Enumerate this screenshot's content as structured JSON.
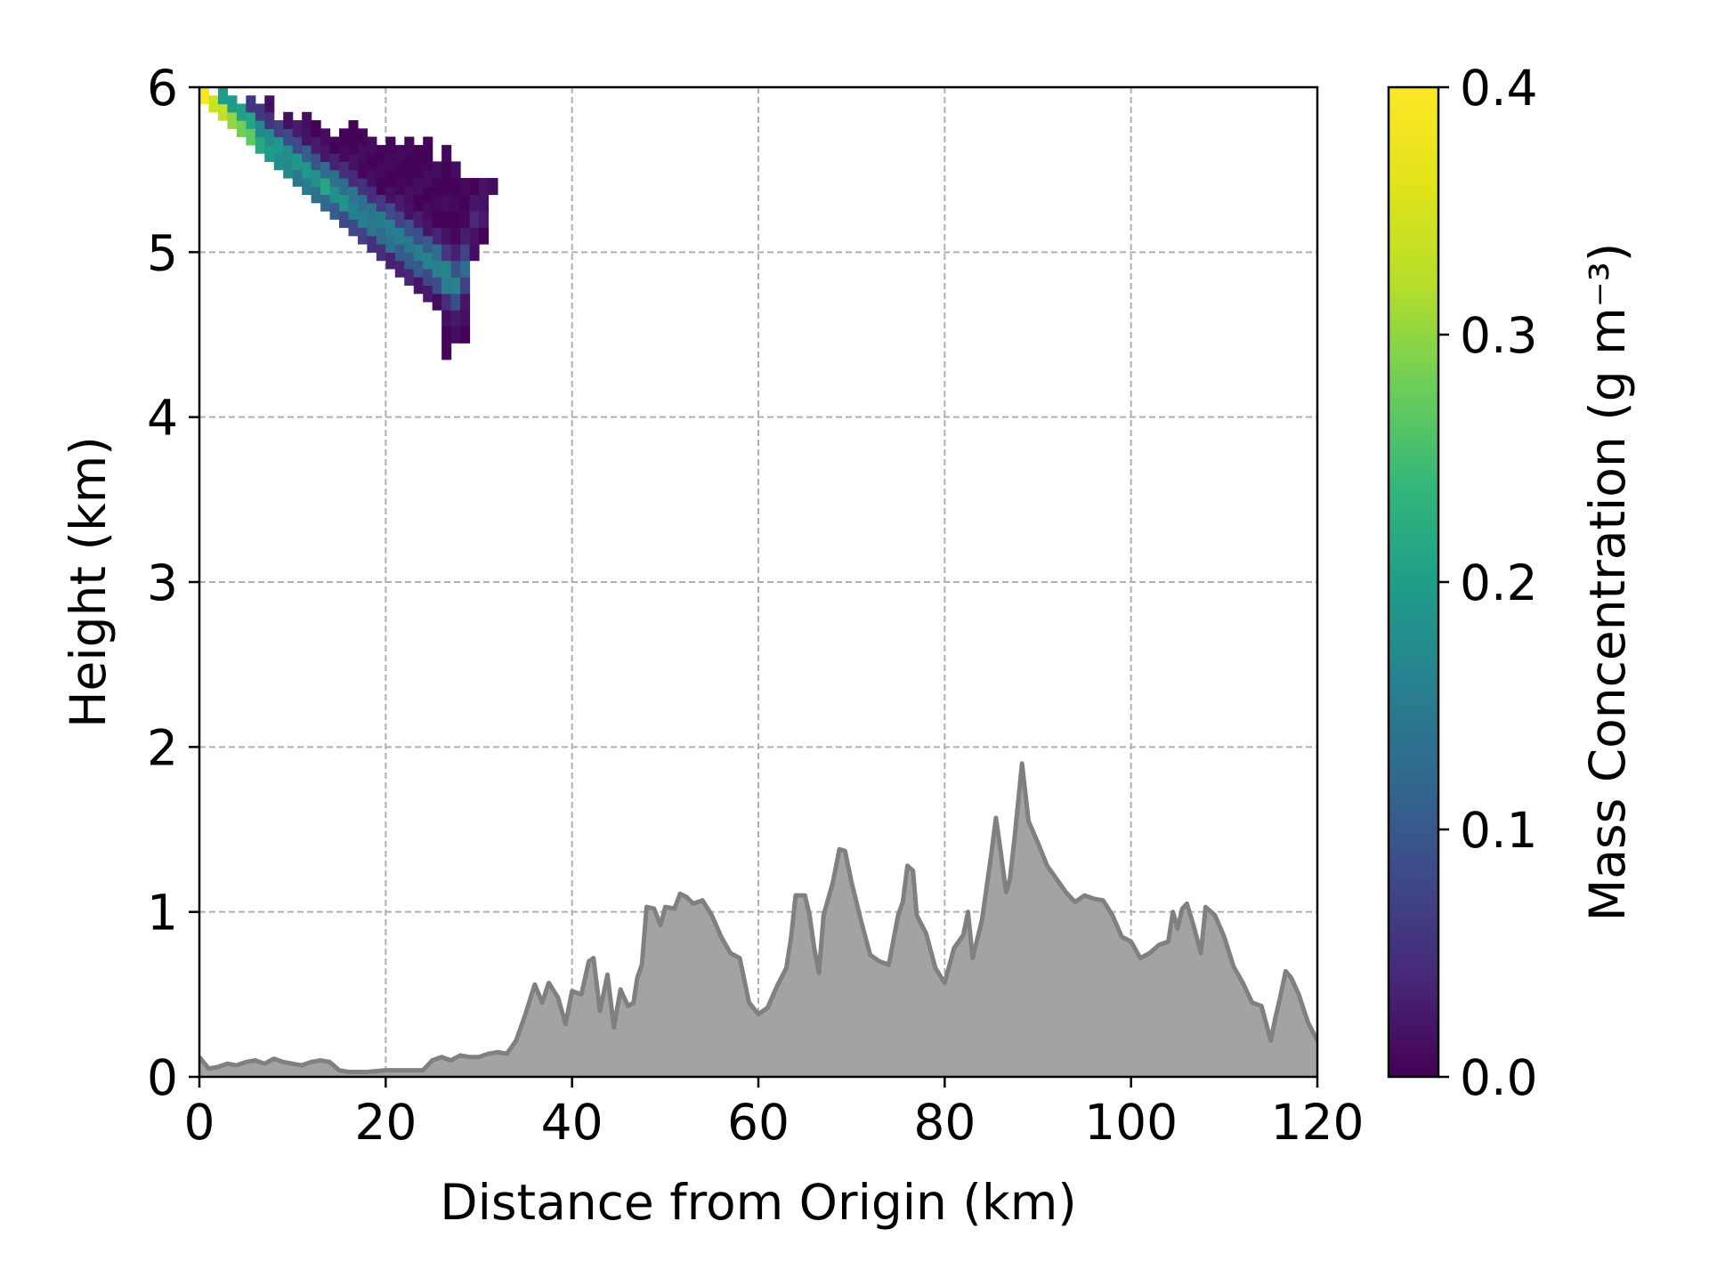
{
  "chart_data": {
    "type": "heatmap",
    "title": "",
    "xlabel": "Distance from Origin (km)",
    "ylabel": "Height (km)",
    "xlim": [
      0,
      120
    ],
    "ylim": [
      0,
      6
    ],
    "x_ticks": [
      "0",
      "20",
      "40",
      "60",
      "80",
      "100",
      "120"
    ],
    "y_ticks": [
      "0",
      "1",
      "2",
      "3",
      "4",
      "5",
      "6"
    ],
    "grid": true,
    "colorbar": {
      "label": "Mass Concentration (g m⁻³)",
      "colormap": "viridis",
      "range": [
        0.0,
        0.4
      ],
      "ticks": [
        "0.0",
        "0.1",
        "0.2",
        "0.3",
        "0.4"
      ]
    },
    "plume": {
      "description_units": "x in km, height in km, concentration in g m-3",
      "cell_size_km": [
        1.0,
        0.1
      ],
      "columns": [
        {
          "x": 0.5,
          "bottom": 5.9,
          "top": 6.0,
          "peak": 0.4,
          "peak_h": 5.95
        },
        {
          "x": 1.5,
          "bottom": 5.85,
          "top": 5.95,
          "peak": 0.34,
          "peak_h": 5.9
        },
        {
          "x": 2.5,
          "bottom": 5.8,
          "top": 5.95,
          "peak": 0.32,
          "peak_h": 5.85
        },
        {
          "x": 3.5,
          "bottom": 5.75,
          "top": 5.92,
          "peak": 0.3,
          "peak_h": 5.8
        },
        {
          "x": 4.5,
          "bottom": 5.7,
          "top": 5.92,
          "peak": 0.28,
          "peak_h": 5.77
        },
        {
          "x": 5.5,
          "bottom": 5.65,
          "top": 5.9,
          "peak": 0.28,
          "peak_h": 5.72
        },
        {
          "x": 6.5,
          "bottom": 5.6,
          "top": 5.9,
          "peak": 0.22,
          "peak_h": 5.68
        },
        {
          "x": 7.5,
          "bottom": 5.55,
          "top": 5.9,
          "peak": 0.2,
          "peak_h": 5.64
        },
        {
          "x": 8.5,
          "bottom": 5.5,
          "top": 5.85,
          "peak": 0.2,
          "peak_h": 5.6
        },
        {
          "x": 9.5,
          "bottom": 5.45,
          "top": 5.85,
          "peak": 0.19,
          "peak_h": 5.56
        },
        {
          "x": 10.5,
          "bottom": 5.4,
          "top": 5.8,
          "peak": 0.19,
          "peak_h": 5.52
        },
        {
          "x": 11.5,
          "bottom": 5.35,
          "top": 5.8,
          "peak": 0.2,
          "peak_h": 5.48
        },
        {
          "x": 12.5,
          "bottom": 5.3,
          "top": 5.8,
          "peak": 0.18,
          "peak_h": 5.44
        },
        {
          "x": 13.5,
          "bottom": 5.25,
          "top": 5.78,
          "peak": 0.2,
          "peak_h": 5.4
        },
        {
          "x": 14.5,
          "bottom": 5.2,
          "top": 5.75,
          "peak": 0.18,
          "peak_h": 5.36
        },
        {
          "x": 15.5,
          "bottom": 5.15,
          "top": 5.75,
          "peak": 0.18,
          "peak_h": 5.32
        },
        {
          "x": 16.5,
          "bottom": 5.1,
          "top": 5.75,
          "peak": 0.17,
          "peak_h": 5.28
        },
        {
          "x": 17.5,
          "bottom": 5.05,
          "top": 5.75,
          "peak": 0.16,
          "peak_h": 5.24
        },
        {
          "x": 18.5,
          "bottom": 5.0,
          "top": 5.72,
          "peak": 0.15,
          "peak_h": 5.2
        },
        {
          "x": 19.5,
          "bottom": 4.95,
          "top": 5.65,
          "peak": 0.15,
          "peak_h": 5.16
        },
        {
          "x": 20.5,
          "bottom": 4.9,
          "top": 5.65,
          "peak": 0.16,
          "peak_h": 5.12
        },
        {
          "x": 21.5,
          "bottom": 4.85,
          "top": 5.65,
          "peak": 0.15,
          "peak_h": 5.08
        },
        {
          "x": 22.5,
          "bottom": 4.8,
          "top": 5.65,
          "peak": 0.15,
          "peak_h": 5.04
        },
        {
          "x": 23.5,
          "bottom": 4.75,
          "top": 5.65,
          "peak": 0.15,
          "peak_h": 5.0
        },
        {
          "x": 24.5,
          "bottom": 4.7,
          "top": 5.65,
          "peak": 0.15,
          "peak_h": 4.96
        },
        {
          "x": 25.5,
          "bottom": 4.65,
          "top": 5.55,
          "peak": 0.16,
          "peak_h": 4.92
        },
        {
          "x": 26.5,
          "bottom": 4.35,
          "top": 5.6,
          "peak": 0.17,
          "peak_h": 4.86
        },
        {
          "x": 27.5,
          "bottom": 4.45,
          "top": 5.55,
          "peak": 0.15,
          "peak_h": 4.8
        },
        {
          "x": 28.5,
          "bottom": 4.45,
          "top": 5.5,
          "peak": 0.12,
          "peak_h": 4.9
        },
        {
          "x": 29.5,
          "bottom": 4.95,
          "top": 5.5,
          "peak": 0.03,
          "peak_h": 5.2
        },
        {
          "x": 30.5,
          "bottom": 5.05,
          "top": 5.45,
          "peak": 0.02,
          "peak_h": 5.25
        },
        {
          "x": 31.5,
          "bottom": 5.35,
          "top": 5.45,
          "peak": 0.01,
          "peak_h": 5.4
        }
      ]
    },
    "terrain": {
      "color": "#a3a3a3",
      "line_color": "#808080",
      "points": [
        [
          0,
          0.12
        ],
        [
          1,
          0.05
        ],
        [
          2,
          0.06
        ],
        [
          3,
          0.08
        ],
        [
          4,
          0.07
        ],
        [
          5,
          0.09
        ],
        [
          6,
          0.1
        ],
        [
          7,
          0.08
        ],
        [
          8,
          0.11
        ],
        [
          9,
          0.09
        ],
        [
          10,
          0.08
        ],
        [
          11,
          0.07
        ],
        [
          12,
          0.09
        ],
        [
          13,
          0.1
        ],
        [
          14,
          0.09
        ],
        [
          15,
          0.04
        ],
        [
          16,
          0.03
        ],
        [
          18,
          0.03
        ],
        [
          20,
          0.04
        ],
        [
          22,
          0.04
        ],
        [
          24,
          0.04
        ],
        [
          25,
          0.1
        ],
        [
          26,
          0.12
        ],
        [
          27,
          0.1
        ],
        [
          28,
          0.13
        ],
        [
          29,
          0.12
        ],
        [
          30,
          0.12
        ],
        [
          31,
          0.14
        ],
        [
          32,
          0.15
        ],
        [
          33,
          0.14
        ],
        [
          34,
          0.22
        ],
        [
          35,
          0.38
        ],
        [
          36,
          0.56
        ],
        [
          36.8,
          0.45
        ],
        [
          37.5,
          0.57
        ],
        [
          38.5,
          0.48
        ],
        [
          39.3,
          0.32
        ],
        [
          40,
          0.52
        ],
        [
          41,
          0.5
        ],
        [
          41.8,
          0.7
        ],
        [
          42.3,
          0.72
        ],
        [
          43,
          0.4
        ],
        [
          43.8,
          0.62
        ],
        [
          44.5,
          0.3
        ],
        [
          45.2,
          0.53
        ],
        [
          46,
          0.43
        ],
        [
          46.6,
          0.45
        ],
        [
          47,
          0.6
        ],
        [
          47.5,
          0.68
        ],
        [
          48,
          1.03
        ],
        [
          48.8,
          1.02
        ],
        [
          49.5,
          0.92
        ],
        [
          50,
          1.03
        ],
        [
          51,
          1.02
        ],
        [
          51.6,
          1.11
        ],
        [
          52.3,
          1.09
        ],
        [
          53,
          1.05
        ],
        [
          54,
          1.07
        ],
        [
          55,
          0.98
        ],
        [
          56,
          0.85
        ],
        [
          57,
          0.75
        ],
        [
          58,
          0.72
        ],
        [
          59,
          0.45
        ],
        [
          60,
          0.38
        ],
        [
          61,
          0.42
        ],
        [
          62,
          0.55
        ],
        [
          63,
          0.66
        ],
        [
          63.5,
          0.84
        ],
        [
          64,
          1.1
        ],
        [
          65,
          1.1
        ],
        [
          65.5,
          0.98
        ],
        [
          66,
          0.78
        ],
        [
          66.5,
          0.63
        ],
        [
          67,
          0.98
        ],
        [
          68,
          1.18
        ],
        [
          68.7,
          1.38
        ],
        [
          69.3,
          1.37
        ],
        [
          70,
          1.18
        ],
        [
          71,
          0.95
        ],
        [
          72,
          0.74
        ],
        [
          73,
          0.7
        ],
        [
          74,
          0.68
        ],
        [
          75,
          0.98
        ],
        [
          75.5,
          1.06
        ],
        [
          76,
          1.28
        ],
        [
          76.6,
          1.25
        ],
        [
          77,
          0.98
        ],
        [
          78,
          0.87
        ],
        [
          79,
          0.66
        ],
        [
          80,
          0.57
        ],
        [
          81,
          0.78
        ],
        [
          82,
          0.86
        ],
        [
          82.5,
          1.0
        ],
        [
          83,
          0.72
        ],
        [
          84,
          0.95
        ],
        [
          85,
          1.35
        ],
        [
          85.5,
          1.57
        ],
        [
          86,
          1.37
        ],
        [
          86.6,
          1.12
        ],
        [
          87,
          1.2
        ],
        [
          87.5,
          1.45
        ],
        [
          88.3,
          1.9
        ],
        [
          89,
          1.55
        ],
        [
          90,
          1.42
        ],
        [
          91,
          1.28
        ],
        [
          92,
          1.2
        ],
        [
          93,
          1.12
        ],
        [
          94,
          1.06
        ],
        [
          95,
          1.1
        ],
        [
          96,
          1.08
        ],
        [
          97,
          1.07
        ],
        [
          98,
          0.98
        ],
        [
          99,
          0.85
        ],
        [
          100,
          0.82
        ],
        [
          101,
          0.72
        ],
        [
          102,
          0.75
        ],
        [
          103,
          0.8
        ],
        [
          104,
          0.82
        ],
        [
          104.5,
          1.0
        ],
        [
          105,
          0.9
        ],
        [
          105.5,
          1.02
        ],
        [
          106,
          1.05
        ],
        [
          106.8,
          0.9
        ],
        [
          107.5,
          0.75
        ],
        [
          108,
          1.03
        ],
        [
          109,
          0.98
        ],
        [
          110,
          0.85
        ],
        [
          111,
          0.67
        ],
        [
          112,
          0.57
        ],
        [
          113,
          0.45
        ],
        [
          114,
          0.43
        ],
        [
          115,
          0.22
        ],
        [
          115.5,
          0.36
        ],
        [
          116,
          0.48
        ],
        [
          116.6,
          0.64
        ],
        [
          117.2,
          0.6
        ],
        [
          118,
          0.5
        ],
        [
          119,
          0.33
        ],
        [
          120,
          0.22
        ]
      ]
    }
  }
}
